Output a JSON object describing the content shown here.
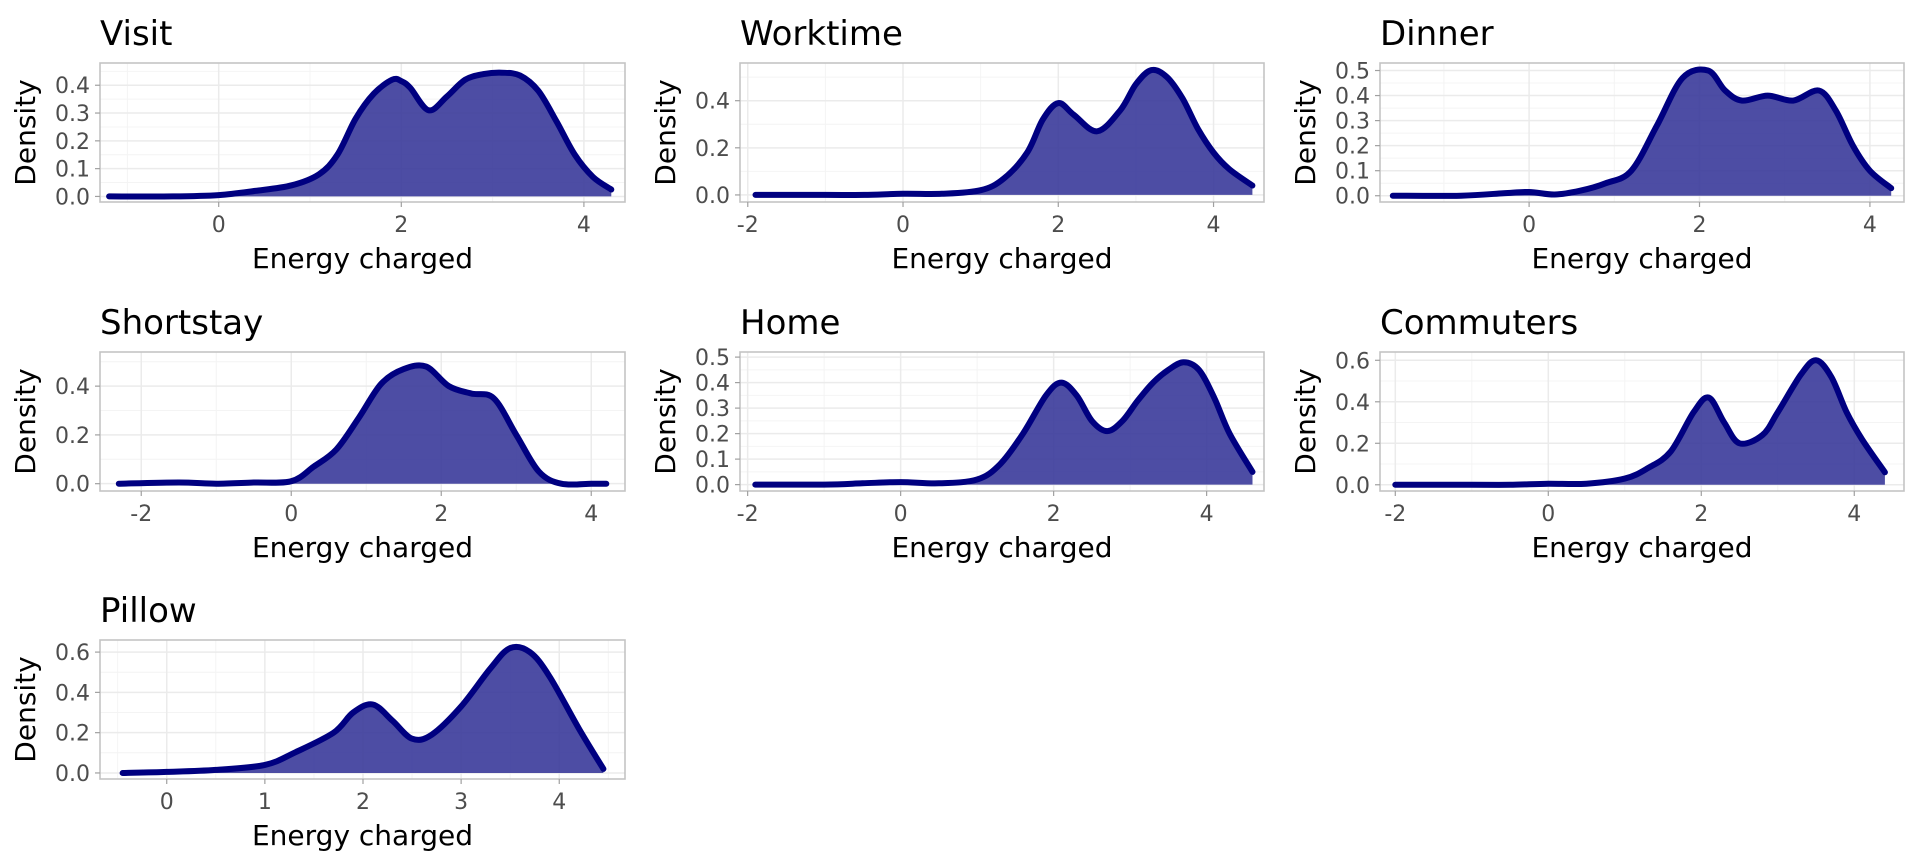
{
  "colors": {
    "fill": "#3a3a9a",
    "line": "#000080",
    "reference_line": "#000000"
  },
  "chart_data": [
    {
      "type": "area",
      "title": "Visit",
      "xlabel": "Energy charged",
      "ylabel": "Density",
      "xlim": [
        -1.3,
        4.45
      ],
      "ylim": [
        -0.02,
        0.48
      ],
      "xticks": [
        0,
        2,
        4
      ],
      "yticks": [
        0,
        0.1,
        0.2,
        0.3,
        0.4
      ],
      "yticklabels": [
        "0.0",
        "0.1",
        "0.2",
        "0.3",
        "0.4"
      ],
      "series": [
        {
          "x": [
            -1.2,
            -0.5,
            0,
            0.4,
            0.8,
            1.1,
            1.3,
            1.5,
            1.7,
            1.9,
            2.0,
            2.1,
            2.3,
            2.5,
            2.7,
            2.9,
            3.1,
            3.3,
            3.5,
            3.7,
            3.9,
            4.1,
            4.3
          ],
          "y": [
            0.0,
            0.0,
            0.005,
            0.02,
            0.04,
            0.08,
            0.15,
            0.28,
            0.37,
            0.42,
            0.415,
            0.39,
            0.31,
            0.36,
            0.42,
            0.44,
            0.445,
            0.435,
            0.38,
            0.27,
            0.15,
            0.07,
            0.025
          ]
        }
      ]
    },
    {
      "type": "area",
      "title": "Worktime",
      "xlabel": "Energy charged",
      "ylabel": "Density",
      "xlim": [
        -2.1,
        4.65
      ],
      "ylim": [
        -0.03,
        0.56
      ],
      "xticks": [
        -2,
        0,
        2,
        4
      ],
      "yticks": [
        0,
        0.2,
        0.4
      ],
      "yticklabels": [
        "0.0",
        "0.2",
        "0.4"
      ],
      "series": [
        {
          "x": [
            -1.9,
            -1.0,
            -0.5,
            0,
            0.5,
            1.0,
            1.3,
            1.6,
            1.8,
            2.0,
            2.2,
            2.5,
            2.8,
            3.0,
            3.2,
            3.4,
            3.6,
            3.8,
            4.0,
            4.2,
            4.5
          ],
          "y": [
            0.0,
            0.0,
            0.0,
            0.005,
            0.005,
            0.02,
            0.07,
            0.18,
            0.32,
            0.39,
            0.34,
            0.27,
            0.36,
            0.47,
            0.53,
            0.5,
            0.41,
            0.28,
            0.18,
            0.11,
            0.04
          ]
        }
      ]
    },
    {
      "type": "area",
      "title": "Dinner",
      "xlabel": "Energy charged",
      "ylabel": "Density",
      "xlim": [
        -1.75,
        4.4
      ],
      "ylim": [
        -0.025,
        0.53
      ],
      "xticks": [
        0,
        2,
        4
      ],
      "yticks": [
        0,
        0.1,
        0.2,
        0.3,
        0.4,
        0.5
      ],
      "yticklabels": [
        "0.0",
        "0.1",
        "0.2",
        "0.3",
        "0.4",
        "0.5"
      ],
      "series": [
        {
          "x": [
            -1.6,
            -0.8,
            -0.3,
            0,
            0.3,
            0.6,
            0.9,
            1.2,
            1.5,
            1.8,
            2.1,
            2.3,
            2.5,
            2.8,
            3.1,
            3.4,
            3.6,
            3.8,
            4.0,
            4.25
          ],
          "y": [
            0.0,
            0.0,
            0.01,
            0.015,
            0.005,
            0.02,
            0.05,
            0.1,
            0.28,
            0.47,
            0.5,
            0.42,
            0.38,
            0.4,
            0.38,
            0.42,
            0.34,
            0.2,
            0.1,
            0.03
          ]
        }
      ]
    },
    {
      "type": "area",
      "title": "Shortstay",
      "xlabel": "Energy charged",
      "ylabel": "Density",
      "xlim": [
        -2.55,
        4.45
      ],
      "ylim": [
        -0.03,
        0.54
      ],
      "xticks": [
        -2,
        0,
        2,
        4
      ],
      "yticks": [
        0,
        0.2,
        0.4
      ],
      "yticklabels": [
        "0.0",
        "0.2",
        "0.4"
      ],
      "series": [
        {
          "x": [
            -2.3,
            -1.5,
            -1.0,
            -0.5,
            0,
            0.3,
            0.6,
            0.9,
            1.2,
            1.5,
            1.8,
            2.1,
            2.4,
            2.7,
            3.0,
            3.3,
            3.6,
            4.0,
            4.2
          ],
          "y": [
            0.0,
            0.005,
            0.0,
            0.005,
            0.01,
            0.07,
            0.14,
            0.27,
            0.41,
            0.47,
            0.48,
            0.4,
            0.37,
            0.35,
            0.2,
            0.05,
            0.0,
            0.0,
            0.0
          ]
        }
      ]
    },
    {
      "type": "area",
      "title": "Home",
      "xlabel": "Energy charged",
      "ylabel": "Density",
      "xlim": [
        -2.1,
        4.75
      ],
      "ylim": [
        -0.025,
        0.52
      ],
      "xticks": [
        -2,
        0,
        2,
        4
      ],
      "yticks": [
        0,
        0.1,
        0.2,
        0.3,
        0.4,
        0.5
      ],
      "yticklabels": [
        "0.0",
        "0.1",
        "0.2",
        "0.3",
        "0.4",
        "0.5"
      ],
      "series": [
        {
          "x": [
            -1.9,
            -1.0,
            -0.5,
            0,
            0.5,
            1.0,
            1.3,
            1.6,
            1.9,
            2.1,
            2.3,
            2.5,
            2.7,
            2.9,
            3.1,
            3.3,
            3.5,
            3.7,
            3.9,
            4.1,
            4.3,
            4.6
          ],
          "y": [
            0.0,
            0.0,
            0.005,
            0.01,
            0.005,
            0.02,
            0.08,
            0.2,
            0.35,
            0.4,
            0.35,
            0.25,
            0.21,
            0.25,
            0.33,
            0.4,
            0.45,
            0.48,
            0.45,
            0.34,
            0.2,
            0.05
          ]
        }
      ]
    },
    {
      "type": "area",
      "title": "Commuters",
      "xlabel": "Energy charged",
      "ylabel": "Density",
      "xlim": [
        -2.2,
        4.65
      ],
      "ylim": [
        -0.03,
        0.64
      ],
      "xticks": [
        -2,
        0,
        2,
        4
      ],
      "yticks": [
        0,
        0.2,
        0.4,
        0.6
      ],
      "yticklabels": [
        "0.0",
        "0.2",
        "0.4",
        "0.6"
      ],
      "series": [
        {
          "x": [
            -2.0,
            -1.0,
            -0.5,
            0,
            0.5,
            1.0,
            1.3,
            1.6,
            1.9,
            2.1,
            2.3,
            2.5,
            2.8,
            3.0,
            3.3,
            3.5,
            3.7,
            3.9,
            4.1,
            4.4
          ],
          "y": [
            0.0,
            0.0,
            0.0,
            0.005,
            0.005,
            0.03,
            0.08,
            0.16,
            0.35,
            0.42,
            0.3,
            0.2,
            0.24,
            0.35,
            0.53,
            0.6,
            0.52,
            0.35,
            0.22,
            0.06
          ]
        }
      ]
    },
    {
      "type": "area",
      "title": "Pillow",
      "xlabel": "Energy charged",
      "ylabel": "Density",
      "xlim": [
        -0.68,
        4.67
      ],
      "ylim": [
        -0.03,
        0.66
      ],
      "xticks": [
        0,
        1,
        2,
        3,
        4
      ],
      "yticks": [
        0,
        0.2,
        0.4,
        0.6
      ],
      "yticklabels": [
        "0.0",
        "0.2",
        "0.4",
        "0.6"
      ],
      "series": [
        {
          "x": [
            -0.45,
            0,
            0.5,
            1.0,
            1.3,
            1.7,
            1.9,
            2.1,
            2.3,
            2.5,
            2.7,
            3.0,
            3.3,
            3.5,
            3.7,
            3.9,
            4.2,
            4.45
          ],
          "y": [
            0.0,
            0.005,
            0.015,
            0.04,
            0.1,
            0.2,
            0.3,
            0.34,
            0.26,
            0.17,
            0.19,
            0.33,
            0.52,
            0.62,
            0.6,
            0.48,
            0.22,
            0.02
          ]
        }
      ]
    }
  ]
}
